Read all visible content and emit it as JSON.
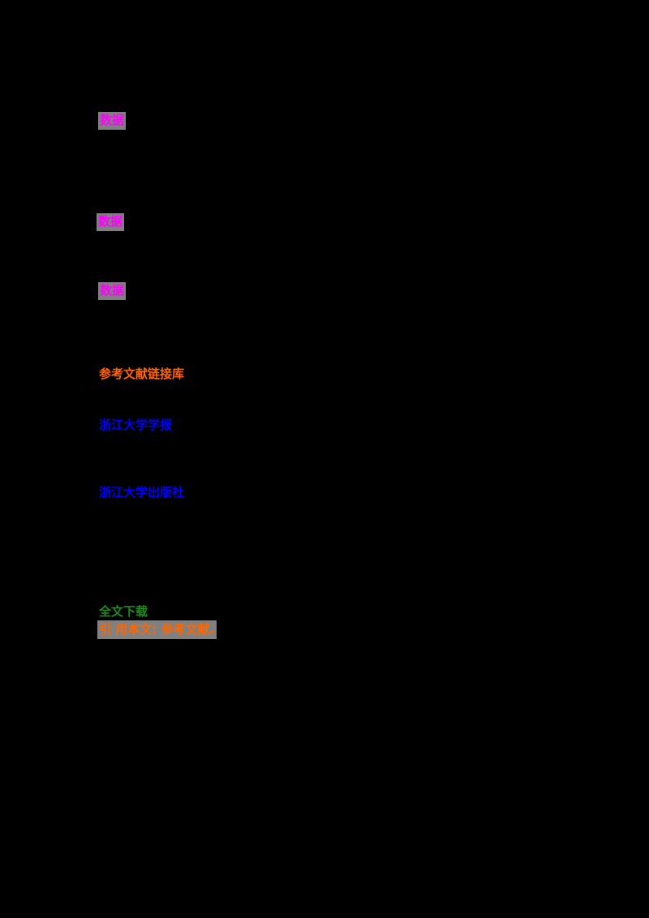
{
  "document": {
    "background_color": "#000000",
    "highlight_background": "#808080",
    "items": [
      {
        "name": "highlighted-term-1",
        "text": "数据",
        "color": "#FF00FF",
        "background": "#808080",
        "role": "find-match-highlight"
      },
      {
        "name": "highlighted-term-2",
        "text": "数据",
        "color": "#FF00FF",
        "background": "#808080",
        "role": "find-match-highlight"
      },
      {
        "name": "highlighted-term-3",
        "text": "数据",
        "color": "#FF00FF",
        "background": "#808080",
        "role": "find-match-highlight"
      },
      {
        "name": "orange-link-resources",
        "text": "参考文献链接库",
        "color": "#FF6600",
        "background": "",
        "role": "link"
      },
      {
        "name": "blue-link-journal",
        "text": "浙江大学学报",
        "color": "#0000FF",
        "background": "",
        "role": "link"
      },
      {
        "name": "blue-link-publisher",
        "text": "浙江大学出版社",
        "color": "#0000FF",
        "background": "",
        "role": "link"
      },
      {
        "name": "green-link-fulltext",
        "text": "全文下载",
        "color": "#228B22",
        "background": "",
        "role": "link"
      },
      {
        "name": "orange-citation-line",
        "text": "引 用本文: 参考文献.",
        "color": "#FF6600",
        "background": "#808080",
        "role": "highlighted-citation"
      }
    ]
  }
}
